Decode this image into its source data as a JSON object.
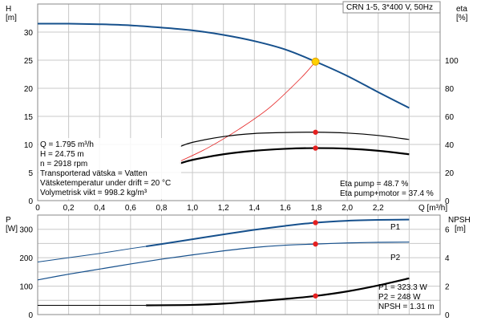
{
  "chart_data": [
    {
      "type": "line",
      "title": "CRN 1-5, 3*400 V, 50Hz",
      "xlabel": "Q [m³/h]",
      "ylabel": "H\n[m]",
      "y2label": "eta\n[%]",
      "xlim": [
        0,
        2.6
      ],
      "ylim": [
        0,
        35
      ],
      "y2lim": [
        0,
        140
      ],
      "x_ticks": [
        "0",
        "0,2",
        "0,4",
        "0,6",
        "0,8",
        "1,0",
        "1,2",
        "1,4",
        "1,6",
        "1,8",
        "2,0",
        "2,2"
      ],
      "y_ticks": [
        "0",
        "5",
        "10",
        "15",
        "20",
        "25",
        "30"
      ],
      "y2_ticks": [
        "0",
        "20",
        "40",
        "60",
        "80",
        "100"
      ],
      "grid": true,
      "series": [
        {
          "axis": "left",
          "color": "#16508c",
          "x": [
            0,
            0.2,
            0.4,
            0.6,
            0.8,
            1.0,
            1.2,
            1.4,
            1.6,
            1.795,
            2.0,
            2.2,
            2.4
          ],
          "values": [
            31.5,
            31.5,
            31.4,
            31.2,
            30.8,
            30.3,
            29.5,
            28.4,
            26.9,
            24.75,
            22.2,
            19.3,
            16.5
          ]
        },
        {
          "axis": "right",
          "color": "#000000",
          "x": [
            0.92,
            1.0,
            1.2,
            1.4,
            1.6,
            1.795,
            2.0,
            2.2,
            2.4
          ],
          "values": [
            38.5,
            41.5,
            45.6,
            47.8,
            48.5,
            48.7,
            48.1,
            46.4,
            43.5
          ]
        },
        {
          "axis": "right",
          "color": "#000000",
          "x": [
            0.92,
            1.0,
            1.2,
            1.4,
            1.6,
            1.795,
            2.0,
            2.2,
            2.4
          ],
          "values": [
            26.5,
            29.0,
            33.0,
            35.5,
            36.9,
            37.4,
            37.0,
            35.5,
            33.0
          ]
        },
        {
          "axis": "left",
          "color": "#e52020",
          "x": [
            0.92,
            1.1,
            1.3,
            1.5,
            1.7,
            1.795
          ],
          "values": [
            7.0,
            9.4,
            12.7,
            16.6,
            21.8,
            24.75
          ]
        }
      ],
      "duty_point": {
        "x": 1.795,
        "H": 24.75,
        "eta_pump": 48.7,
        "eta_total": 37.4
      },
      "info_left": [
        "Q = 1.795 m³/h",
        "H = 24.75 m",
        "n = 2918 rpm",
        "Transporterad vätska = Vatten",
        "Vätsketemperatur under drift = 20 °C",
        "Volymetrisk vikt = 998.2 kg/m³"
      ],
      "info_right": [
        "Eta pump = 48.7 %",
        "Eta pump+motor = 37.4 %"
      ]
    },
    {
      "type": "line",
      "ylabel": "P\n[W]",
      "y2label": "NPSH\n[m]",
      "xlim": [
        0,
        2.6
      ],
      "ylim": [
        0,
        350
      ],
      "y2lim": [
        0,
        7
      ],
      "y_ticks": [
        "0",
        "100",
        "200",
        "300"
      ],
      "y2_ticks": [
        "0",
        "2",
        "4",
        "6"
      ],
      "grid": true,
      "series": [
        {
          "name": "P1",
          "axis": "left",
          "color": "#16508c",
          "x": [
            0,
            0.2,
            0.4,
            0.6,
            0.7,
            0.8,
            1.0,
            1.2,
            1.4,
            1.6,
            1.795,
            2.0,
            2.2,
            2.4
          ],
          "values": [
            185,
            200,
            215,
            232,
            240,
            248,
            265,
            282,
            298,
            312,
            323.3,
            330,
            333,
            334
          ]
        },
        {
          "name": "P2",
          "axis": "left",
          "color": "#16508c",
          "x": [
            0,
            0.2,
            0.4,
            0.6,
            0.8,
            1.0,
            1.2,
            1.4,
            1.6,
            1.795,
            2.0,
            2.2,
            2.4
          ],
          "values": [
            122,
            142,
            160,
            178,
            195,
            210,
            224,
            236,
            244,
            248,
            252,
            254,
            255
          ]
        },
        {
          "name": "NPSH",
          "axis": "right",
          "color": "#000000",
          "x": [
            0,
            0.4,
            0.7,
            1.0,
            1.2,
            1.4,
            1.6,
            1.795,
            2.0,
            2.2,
            2.4
          ],
          "values": [
            0.65,
            0.65,
            0.65,
            0.68,
            0.77,
            0.92,
            1.1,
            1.31,
            1.63,
            2.05,
            2.55
          ]
        }
      ],
      "info_right": [
        "P1 = 323.3 W",
        "P2 = 248 W",
        "NPSH = 1.31 m"
      ]
    }
  ]
}
